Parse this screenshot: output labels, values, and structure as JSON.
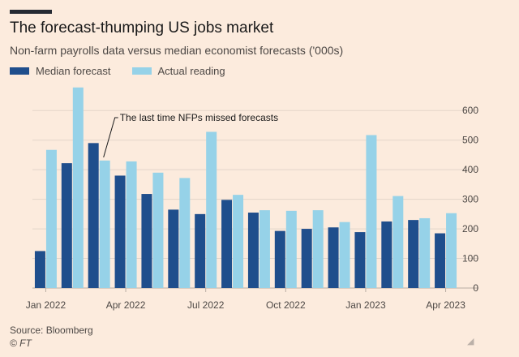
{
  "header": {
    "title": "The forecast-thumping US jobs market",
    "subtitle": "Non-farm payrolls data versus median economist forecasts ('000s)"
  },
  "legend": {
    "median_label": "Median forecast",
    "actual_label": "Actual reading"
  },
  "colors": {
    "median": "#1f4e8c",
    "actual": "#96d2e8",
    "background": "#fcebdd",
    "gridline": "#e3d5ca",
    "text": "#4d4845"
  },
  "chart_data": {
    "type": "bar",
    "categories": [
      "Jan 2022",
      "Feb 2022",
      "Mar 2022",
      "Apr 2022",
      "May 2022",
      "Jun 2022",
      "Jul 2022",
      "Aug 2022",
      "Sep 2022",
      "Oct 2022",
      "Nov 2022",
      "Dec 2022",
      "Jan 2023",
      "Feb 2023",
      "Mar 2023",
      "Apr 2023"
    ],
    "tick_labels": [
      "Jan 2022",
      "",
      "",
      "Apr 2022",
      "",
      "",
      "Jul 2022",
      "",
      "",
      "Oct 2022",
      "",
      "",
      "Jan 2023",
      "",
      "",
      "Apr 2023"
    ],
    "series": [
      {
        "name": "Median forecast",
        "values": [
          125,
          422,
          490,
          380,
          318,
          265,
          250,
          298,
          255,
          193,
          200,
          205,
          189,
          225,
          230,
          185
        ]
      },
      {
        "name": "Actual reading",
        "values": [
          467,
          678,
          431,
          428,
          390,
          372,
          528,
          315,
          263,
          261,
          263,
          223,
          517,
          311,
          236,
          253
        ]
      }
    ],
    "y_ticks": [
      0,
      100,
      200,
      300,
      400,
      500,
      600
    ],
    "ylim": [
      0,
      650
    ],
    "grid": true,
    "annotation": {
      "text": "The last time NFPs missed forecasts",
      "category": "Mar 2022"
    }
  },
  "footer": {
    "source": "Source: Bloomberg",
    "credit": "© FT"
  }
}
